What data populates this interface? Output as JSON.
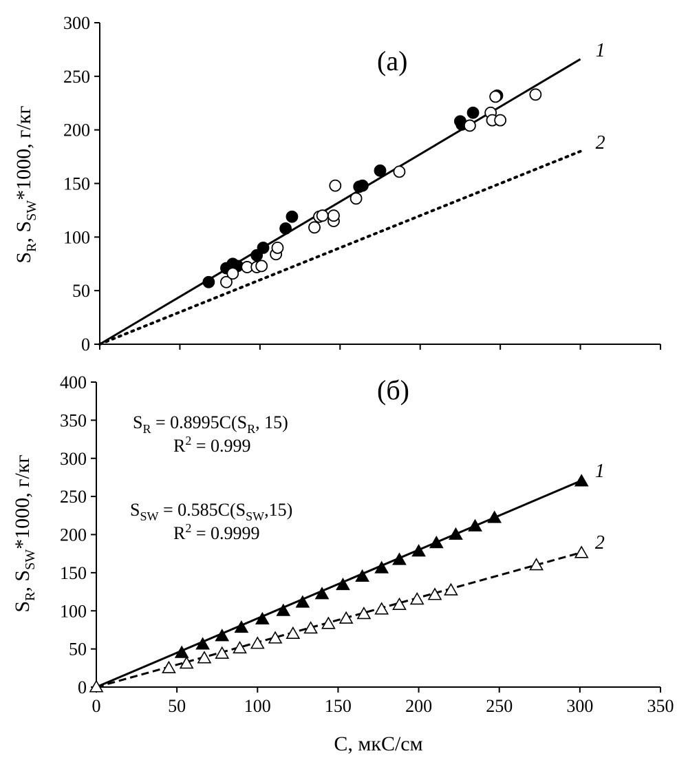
{
  "chart_data": [
    {
      "type": "scatter",
      "panel_label": "(a)",
      "ylabel": "S_R, S_SW*1000, г/кг",
      "ylabel_parts": {
        "s1": "S",
        "s1_sub": "R",
        "mid": ", S",
        "s2_sub": "SW",
        "tail": "*1000, г/кг"
      },
      "xlim": [
        0,
        350
      ],
      "ylim": [
        0,
        300
      ],
      "grid": false,
      "y_ticks": [
        "0",
        "50",
        "100",
        "150",
        "200",
        "250",
        "300"
      ],
      "lines": [
        {
          "label": "1",
          "style": "solid",
          "x": [
            0,
            300
          ],
          "y": [
            0,
            266
          ]
        },
        {
          "label": "2",
          "style": "dotted",
          "x": [
            0,
            300
          ],
          "y": [
            0,
            180
          ]
        }
      ],
      "series": [
        {
          "marker": "filled-circle",
          "x": [
            68,
            79,
            83,
            86,
            98,
            102,
            116,
            120,
            162,
            164,
            175,
            225,
            226,
            233,
            248
          ],
          "y": [
            58,
            71,
            75,
            73,
            83,
            90,
            108,
            119,
            147,
            148,
            162,
            208,
            205,
            216,
            232
          ]
        },
        {
          "marker": "open-circle",
          "x": [
            79,
            83,
            92,
            98,
            101,
            110,
            111,
            134,
            137,
            139,
            146,
            146,
            147,
            160,
            187,
            231,
            244,
            245,
            247,
            250,
            272
          ],
          "y": [
            58,
            66,
            72,
            72,
            73,
            84,
            90,
            109,
            119,
            120,
            115,
            120,
            148,
            136,
            161,
            204,
            216,
            209,
            231,
            209,
            233
          ]
        }
      ]
    },
    {
      "type": "scatter",
      "panel_label": "(б)",
      "xlabel": "C, мкС/см",
      "ylabel": "S_R, S_SW*1000, г/кг",
      "ylabel_parts": {
        "s1": "S",
        "s1_sub": "R",
        "mid": ", S",
        "s2_sub": "SW",
        "tail": "*1000, г/кг"
      },
      "xlim": [
        0,
        350
      ],
      "ylim": [
        0,
        400
      ],
      "grid": false,
      "x_ticks": [
        "0",
        "50",
        "100",
        "150",
        "200",
        "250",
        "300",
        "350"
      ],
      "y_ticks": [
        "0",
        "50",
        "100",
        "150",
        "200",
        "250",
        "300",
        "350",
        "400"
      ],
      "equations": {
        "eq1": {
          "lhs": "S",
          "lhs_sub": "R",
          "rhs_a": " = 0.8995C(S",
          "rhs_sub": "R",
          "rhs_b": ", 15)",
          "r2_a": "R",
          "r2_sup": "2",
          "r2_b": " = 0.999"
        },
        "eq2": {
          "lhs": "S",
          "lhs_sub": "SW",
          "rhs_a": " = 0.585C(S",
          "rhs_sub": "SW",
          "rhs_b": ",15)",
          "r2_a": "R",
          "r2_sup": "2",
          "r2_b": " = 0.9999"
        }
      },
      "lines": [
        {
          "label": "1",
          "style": "solid",
          "x": [
            0,
            300
          ],
          "y": [
            0,
            270
          ]
        },
        {
          "label": "2",
          "style": "dashed",
          "x": [
            0,
            300
          ],
          "y": [
            0,
            176
          ]
        }
      ],
      "series": [
        {
          "marker": "filled-triangle",
          "x": [
            53,
            66,
            78,
            90,
            103,
            116,
            128,
            140,
            153,
            165,
            177,
            188,
            200,
            211,
            223,
            235,
            247,
            301
          ],
          "y": [
            45,
            56,
            67,
            78,
            89,
            100,
            111,
            122,
            134,
            145,
            156,
            167,
            178,
            189,
            200,
            211,
            222,
            270
          ]
        },
        {
          "marker": "open-triangle",
          "x": [
            0,
            45,
            56,
            67,
            78,
            89,
            100,
            111,
            122,
            133,
            144,
            155,
            166,
            177,
            188,
            199,
            210,
            220,
            273,
            301
          ],
          "y": [
            0,
            25,
            31,
            38,
            44,
            51,
            57,
            64,
            70,
            77,
            83,
            90,
            96,
            102,
            108,
            115,
            121,
            127,
            160,
            176
          ]
        }
      ]
    }
  ]
}
